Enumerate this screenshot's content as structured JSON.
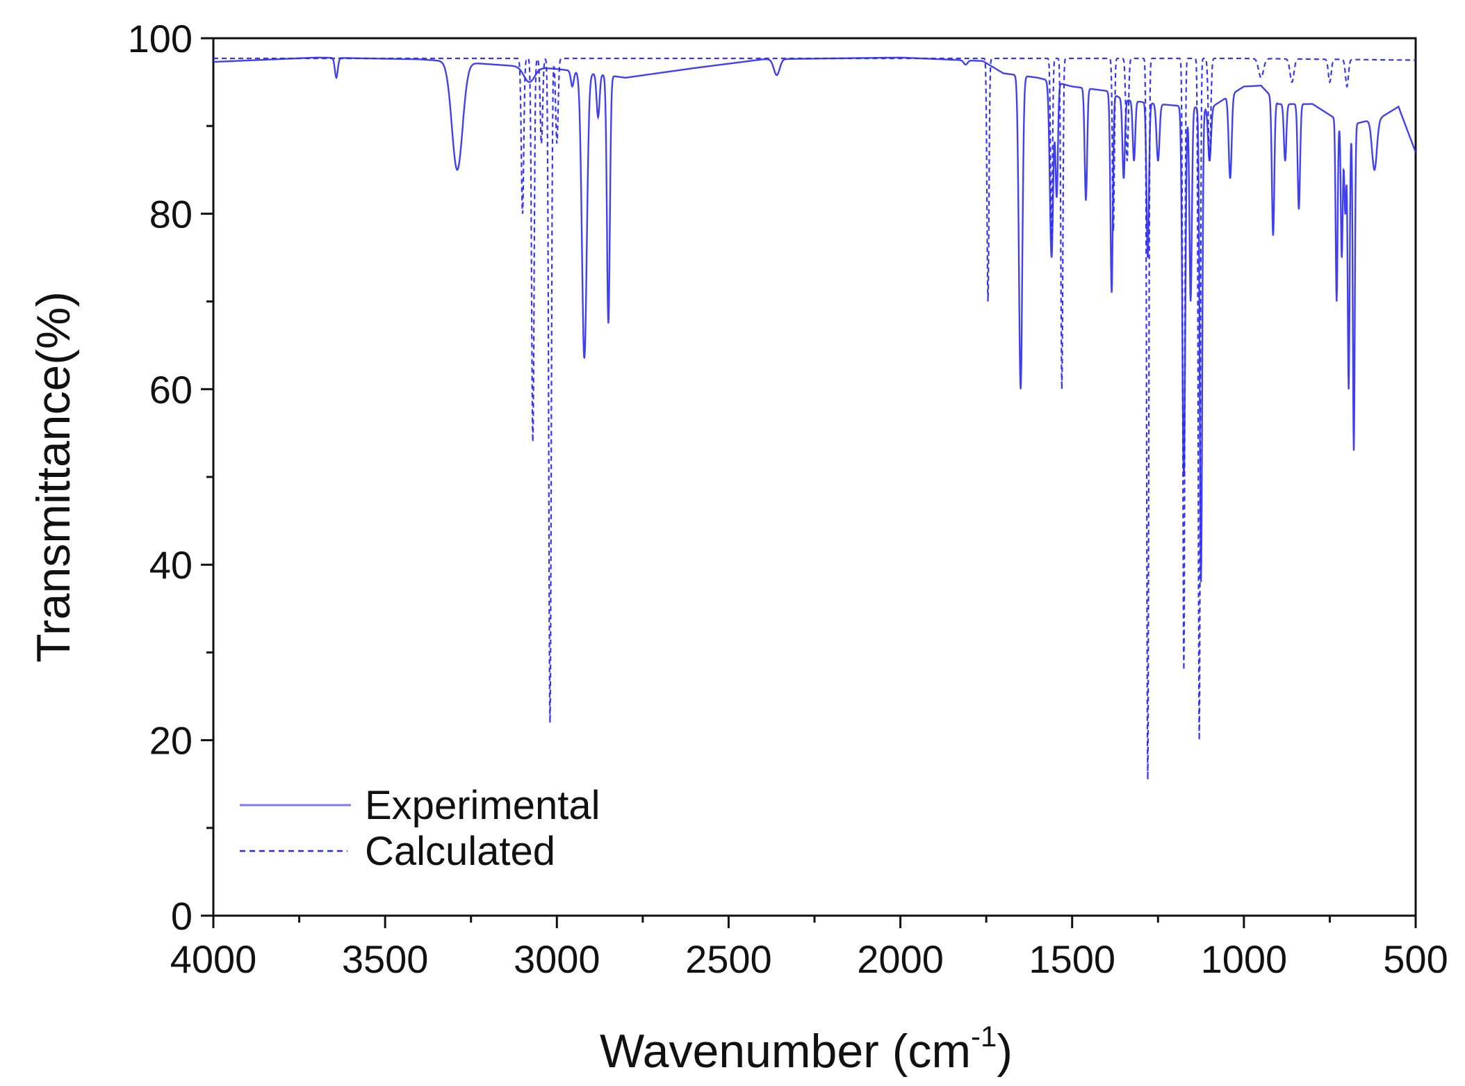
{
  "chart_data": {
    "type": "line",
    "xlabel": "Wavenumber (cm",
    "xlabel_sup": "-1",
    "xlabel_close": ")",
    "ylabel": "Transmittance(%)",
    "xlim": [
      4000,
      500
    ],
    "ylim": [
      0,
      100
    ],
    "x_ticks": [
      4000,
      3500,
      3000,
      2500,
      2000,
      1500,
      1000,
      500
    ],
    "y_ticks": [
      0,
      20,
      40,
      60,
      80,
      100
    ],
    "legend_position": "bottom-left",
    "colors": {
      "series": "#2b2bf0",
      "axis": "#111111"
    },
    "series": [
      {
        "name": "Experimental",
        "style": "solid",
        "baseline": [
          [
            4000,
            97.3
          ],
          [
            3700,
            97.8
          ],
          [
            3400,
            97.6
          ],
          [
            3000,
            96.5
          ],
          [
            2800,
            95.5
          ],
          [
            2600,
            96.6
          ],
          [
            2400,
            97.6
          ],
          [
            2000,
            97.8
          ],
          [
            1760,
            97.4
          ],
          [
            1700,
            96
          ],
          [
            1600,
            95.5
          ],
          [
            1500,
            94.5
          ],
          [
            1400,
            94
          ],
          [
            1350,
            93
          ],
          [
            1250,
            92.5
          ],
          [
            1100,
            92
          ],
          [
            1000,
            94.5
          ],
          [
            950,
            94.6
          ],
          [
            900,
            92.5
          ],
          [
            800,
            92.5
          ],
          [
            700,
            90
          ],
          [
            600,
            91
          ],
          [
            550,
            92.2
          ],
          [
            500,
            87
          ]
        ],
        "peaks": [
          [
            3642,
            95.5,
            6
          ],
          [
            3290,
            85,
            22
          ],
          [
            3080,
            95,
            22
          ],
          [
            2955,
            94.5,
            6
          ],
          [
            2920,
            63.5,
            10
          ],
          [
            2880,
            91,
            6
          ],
          [
            2850,
            67.5,
            6
          ],
          [
            2360,
            95.8,
            12
          ],
          [
            1810,
            97,
            8
          ],
          [
            1650,
            60,
            7
          ],
          [
            1560,
            75,
            7
          ],
          [
            1545,
            82,
            5
          ],
          [
            1460,
            81.5,
            5
          ],
          [
            1385,
            71,
            5
          ],
          [
            1350,
            84,
            5
          ],
          [
            1320,
            86,
            5
          ],
          [
            1280,
            75,
            5
          ],
          [
            1250,
            86,
            6
          ],
          [
            1175,
            50,
            6
          ],
          [
            1155,
            70,
            5
          ],
          [
            1125,
            38,
            5
          ],
          [
            1100,
            86,
            6
          ],
          [
            1040,
            84,
            6
          ],
          [
            915,
            77.5,
            5
          ],
          [
            880,
            86,
            5
          ],
          [
            840,
            80.5,
            5
          ],
          [
            730,
            70,
            4
          ],
          [
            715,
            75,
            4
          ],
          [
            705,
            80,
            4
          ],
          [
            695,
            60,
            4
          ],
          [
            680,
            53,
            4
          ],
          [
            620,
            85,
            10
          ]
        ]
      },
      {
        "name": "Calculated",
        "style": "dashed",
        "baseline": [
          [
            4000,
            97.7
          ],
          [
            1000,
            97.7
          ],
          [
            500,
            97.5
          ]
        ],
        "peaks": [
          [
            3100,
            80,
            5
          ],
          [
            3070,
            54,
            5
          ],
          [
            3045,
            88,
            5
          ],
          [
            3020,
            22,
            5
          ],
          [
            3000,
            88,
            5
          ],
          [
            1745,
            70,
            4
          ],
          [
            1560,
            77,
            4
          ],
          [
            1530,
            60,
            4
          ],
          [
            1380,
            78,
            4
          ],
          [
            1340,
            86,
            5
          ],
          [
            1280,
            15.5,
            4
          ],
          [
            1175,
            28,
            4
          ],
          [
            1130,
            20,
            4
          ],
          [
            1100,
            86,
            5
          ],
          [
            950,
            95.5,
            10
          ],
          [
            860,
            95,
            8
          ],
          [
            750,
            95,
            6
          ],
          [
            700,
            94.5,
            6
          ]
        ]
      }
    ]
  }
}
